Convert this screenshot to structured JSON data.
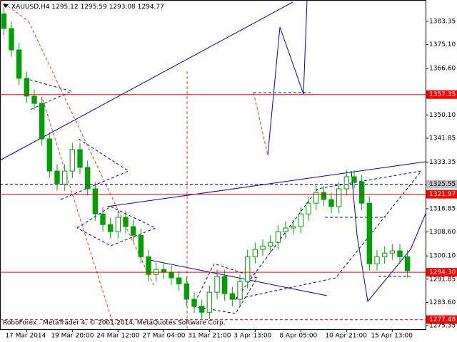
{
  "chart_data": {
    "type": "candlestick",
    "symbol": "XAUUSD,H4",
    "quote": [
      1295.12,
      1295.59,
      1293.08,
      1294.77
    ],
    "watermark": "RoboForex - MetaTrader 4, © 2001-2014, MetaQuotes Software Corp.",
    "color": "#00a000",
    "categories": [
      null,
      null,
      null,
      "17 Mar 2014",
      null,
      null,
      null,
      null,
      null,
      "19 Mar 20:00",
      null,
      null,
      null,
      null,
      null,
      "24 Mar 12:00",
      null,
      null,
      null,
      null,
      null,
      "27 Mar 04:00",
      null,
      null,
      null,
      null,
      null,
      "31 Mar 21:00",
      null,
      null,
      null,
      null,
      null,
      "3 Apr 13:00",
      null,
      null,
      null,
      null,
      null,
      "8 Apr 05:00",
      null,
      null,
      null,
      null,
      null,
      "10 Apr 21:00",
      null,
      null,
      null,
      null,
      null,
      "15 Apr 13:00",
      null,
      null
    ],
    "open": [
      1386.0,
      1380.8,
      1373.2,
      1363.1,
      1356.8,
      1354.2,
      1341.6,
      1330.2,
      1325.6,
      1330.2,
      1337.8,
      1331.5,
      1323.9,
      1315.0,
      1311.2,
      1308.7,
      1313.8,
      1310.5,
      1307.4,
      1299.8,
      1293.5,
      1295.3,
      1294.3,
      1292.3,
      1290.2,
      1284.7,
      1282.2,
      1280.1,
      1287.2,
      1292.8,
      1286.7,
      1284.7,
      1291.0,
      1299.8,
      1302.4,
      1303.6,
      1304.9,
      1308.7,
      1310.0,
      1310.5,
      1315.0,
      1318.8,
      1322.6,
      1320.1,
      1317.6,
      1323.9,
      1328.2,
      1326.4,
      1318.8,
      1297.3,
      1299.8,
      1301.1,
      1301.9,
      1299.8
    ],
    "high": [
      1388.4,
      1383.2,
      1375.6,
      1365.5,
      1359.2,
      1356.6,
      1344.0,
      1332.6,
      1332.6,
      1340.2,
      1340.2,
      1333.9,
      1326.3,
      1317.4,
      1313.6,
      1316.2,
      1316.2,
      1312.9,
      1309.8,
      1302.2,
      1297.7,
      1297.7,
      1296.7,
      1294.7,
      1292.6,
      1287.1,
      1284.6,
      1289.6,
      1295.2,
      1295.2,
      1289.1,
      1293.4,
      1302.2,
      1304.8,
      1306.0,
      1307.3,
      1311.1,
      1312.4,
      1312.9,
      1317.4,
      1321.2,
      1325.0,
      1325.0,
      1322.5,
      1326.3,
      1330.6,
      1330.6,
      1328.8,
      1321.2,
      1302.2,
      1303.5,
      1304.3,
      1304.3,
      1302.2
    ],
    "low": [
      1378.4,
      1370.8,
      1360.7,
      1354.4,
      1351.8,
      1339.2,
      1327.8,
      1323.2,
      1323.2,
      1327.8,
      1329.1,
      1321.5,
      1312.6,
      1308.8,
      1306.3,
      1306.3,
      1308.1,
      1305.0,
      1297.4,
      1291.1,
      1291.1,
      1291.9,
      1289.9,
      1287.8,
      1282.3,
      1279.8,
      1277.7,
      1277.7,
      1284.8,
      1284.3,
      1282.3,
      1282.3,
      1288.6,
      1297.4,
      1300.0,
      1301.2,
      1302.5,
      1306.3,
      1307.6,
      1308.1,
      1312.6,
      1316.4,
      1317.7,
      1315.2,
      1315.2,
      1321.5,
      1324.0,
      1316.4,
      1294.9,
      1294.9,
      1297.4,
      1298.7,
      1297.4,
      1292.4
    ],
    "close": [
      1380.8,
      1373.2,
      1363.1,
      1356.8,
      1354.2,
      1341.6,
      1330.2,
      1325.6,
      1330.2,
      1337.8,
      1331.5,
      1323.9,
      1315.0,
      1311.2,
      1308.7,
      1313.8,
      1310.5,
      1307.4,
      1299.8,
      1293.5,
      1295.3,
      1294.3,
      1292.3,
      1290.2,
      1284.7,
      1282.2,
      1280.1,
      1287.2,
      1292.8,
      1286.7,
      1284.7,
      1291.0,
      1299.8,
      1302.4,
      1303.6,
      1304.9,
      1308.7,
      1310.0,
      1310.5,
      1315.0,
      1318.8,
      1322.6,
      1320.1,
      1317.6,
      1323.9,
      1328.2,
      1326.4,
      1318.8,
      1297.3,
      1299.8,
      1301.1,
      1301.9,
      1299.8,
      1294.8
    ],
    "ylim": [
      1274.1,
      1390.9
    ],
    "yticks": [
      1383.35,
      {
        "value": 1375.1,
        "label": "1375.10"
      },
      {
        "value": 1366.6,
        "label": "1366.60"
      },
      {
        "value": 1350.1,
        "label": "1350.10"
      },
      1341.85,
      1333.35,
      1316.85,
      {
        "value": 1308.6,
        "label": "1308.60"
      },
      {
        "value": 1300.1,
        "label": "1300.10"
      },
      1291.85,
      {
        "value": 1283.6,
        "label": "1283.60"
      },
      1275.35
    ],
    "levels": [
      {
        "value": 1357.35,
        "label": "1357.35",
        "color": "#ff0000",
        "dashed": false
      },
      {
        "value": 1325.55,
        "label": "1325.55",
        "color": "#0000c0",
        "dashed": true
      },
      {
        "value": 1321.97,
        "label": "1321.97",
        "color": "#ff0000",
        "dashed": false
      },
      {
        "value": 1294.3,
        "label": "1294.30",
        "color": "#ff0000",
        "dashed": false
      },
      {
        "value": 1277.48,
        "label": "1277.48",
        "color": "#ff0000",
        "dashed": true
      }
    ]
  }
}
